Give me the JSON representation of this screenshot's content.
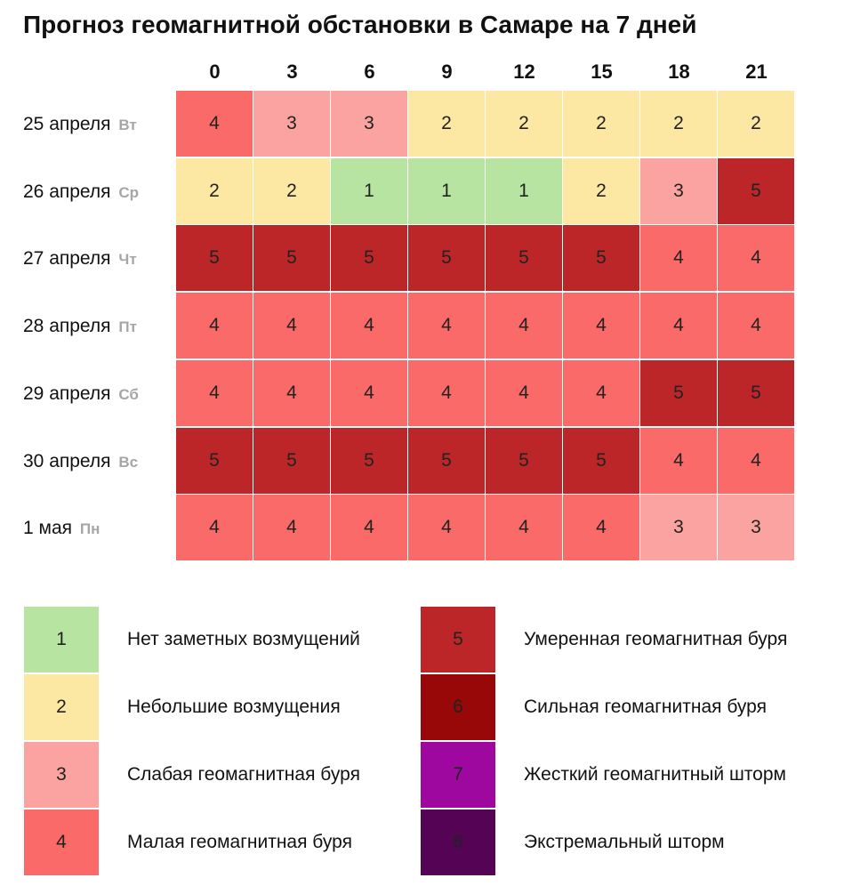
{
  "title": "Прогноз геомагнитной обстановки в Самаре на 7 дней",
  "chart_data": {
    "type": "heatmap",
    "title": "Прогноз геомагнитной обстановки в Самаре на 7 дней",
    "columns": [
      "0",
      "3",
      "6",
      "9",
      "12",
      "15",
      "18",
      "21"
    ],
    "rows": [
      {
        "date": "25 апреля",
        "dow": "Вт",
        "values": [
          4,
          3,
          3,
          2,
          2,
          2,
          2,
          2
        ]
      },
      {
        "date": "26 апреля",
        "dow": "Ср",
        "values": [
          2,
          2,
          1,
          1,
          1,
          2,
          3,
          5
        ]
      },
      {
        "date": "27 апреля",
        "dow": "Чт",
        "values": [
          5,
          5,
          5,
          5,
          5,
          5,
          4,
          4
        ]
      },
      {
        "date": "28 апреля",
        "dow": "Пт",
        "values": [
          4,
          4,
          4,
          4,
          4,
          4,
          4,
          4
        ]
      },
      {
        "date": "29 апреля",
        "dow": "Сб",
        "values": [
          4,
          4,
          4,
          4,
          4,
          4,
          5,
          5
        ]
      },
      {
        "date": "30 апреля",
        "dow": "Вс",
        "values": [
          5,
          5,
          5,
          5,
          5,
          5,
          4,
          4
        ]
      },
      {
        "date": "1 мая",
        "dow": "Пн",
        "values": [
          4,
          4,
          4,
          4,
          4,
          4,
          3,
          3
        ]
      }
    ],
    "legend": [
      {
        "level": "1",
        "label": "Нет заметных возмущений",
        "color": "#b7e4a1"
      },
      {
        "level": "2",
        "label": "Небольшие возмущения",
        "color": "#fce8a3"
      },
      {
        "level": "3",
        "label": "Слабая геомагнитная буря",
        "color": "#fba3a0"
      },
      {
        "level": "4",
        "label": "Малая геомагнитная буря",
        "color": "#fa6a68"
      },
      {
        "level": "5",
        "label": "Умеренная геомагнитная буря",
        "color": "#bd2628"
      },
      {
        "level": "6",
        "label": "Сильная геомагнитная буря",
        "color": "#980808"
      },
      {
        "level": "7",
        "label": "Жесткий геомагнитный шторм",
        "color": "#9e089e"
      },
      {
        "level": "8",
        "label": "Экстремальный шторм",
        "color": "#550355"
      }
    ]
  }
}
